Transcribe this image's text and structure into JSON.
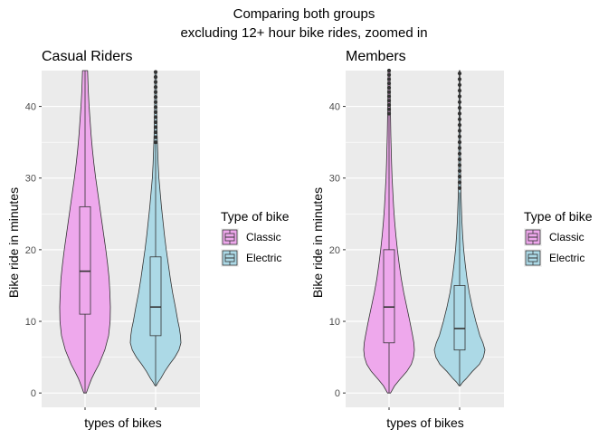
{
  "figure": {
    "title_line1": "Comparing both groups",
    "title_line2": "excluding 12+ hour bike rides, zoomed in"
  },
  "colors": {
    "classic": "#eea8ec",
    "electric": "#acd9e6",
    "panel_bg": "#ebebeb",
    "grid": "#ffffff",
    "outline": "#333333"
  },
  "chart_data": [
    {
      "type": "violin",
      "title": "Casual Riders",
      "xlabel": "types of bikes",
      "ylabel": "Bike ride in minutes",
      "ylim": [
        -2,
        45
      ],
      "yticks": [
        0,
        10,
        20,
        30,
        40
      ],
      "grid": true,
      "legend": {
        "title": "Type of bike",
        "position": "right",
        "entries": [
          "Classic",
          "Electric"
        ]
      },
      "series": [
        {
          "name": "Classic",
          "color": "#eea8ec",
          "box": {
            "q1": 11,
            "median": 17,
            "q3": 26,
            "whisker_low": 0,
            "whisker_high": 45
          },
          "outliers": [],
          "density": [
            [
              0,
              0.05
            ],
            [
              1,
              0.15
            ],
            [
              2,
              0.26
            ],
            [
              3,
              0.4
            ],
            [
              4,
              0.55
            ],
            [
              6,
              0.78
            ],
            [
              8,
              0.93
            ],
            [
              10,
              0.99
            ],
            [
              12,
              1.0
            ],
            [
              14,
              0.98
            ],
            [
              16,
              0.95
            ],
            [
              18,
              0.89
            ],
            [
              20,
              0.82
            ],
            [
              22,
              0.74
            ],
            [
              24,
              0.66
            ],
            [
              26,
              0.58
            ],
            [
              28,
              0.5
            ],
            [
              30,
              0.42
            ],
            [
              32,
              0.35
            ],
            [
              34,
              0.29
            ],
            [
              36,
              0.24
            ],
            [
              38,
              0.2
            ],
            [
              40,
              0.16
            ],
            [
              42,
              0.13
            ],
            [
              44,
              0.11
            ],
            [
              45,
              0.1
            ]
          ]
        },
        {
          "name": "Electric",
          "color": "#acd9e6",
          "box": {
            "q1": 8,
            "median": 12,
            "q3": 19,
            "whisker_low": 1,
            "whisker_high": 35
          },
          "outliers": [
            35,
            35.7,
            36.4,
            37.1,
            37.8,
            38.5,
            39.2,
            39.9,
            40.6,
            41.3,
            42,
            42.7,
            43.4,
            44.1,
            44.8
          ],
          "density": [
            [
              1,
              0.02
            ],
            [
              1.5,
              0.1
            ],
            [
              2,
              0.2
            ],
            [
              3,
              0.36
            ],
            [
              4,
              0.55
            ],
            [
              5,
              0.76
            ],
            [
              6,
              0.92
            ],
            [
              7,
              1.0
            ],
            [
              8,
              0.98
            ],
            [
              9,
              0.94
            ],
            [
              10,
              0.88
            ],
            [
              12,
              0.78
            ],
            [
              14,
              0.67
            ],
            [
              16,
              0.58
            ],
            [
              18,
              0.5
            ],
            [
              20,
              0.42
            ],
            [
              22,
              0.35
            ],
            [
              24,
              0.29
            ],
            [
              26,
              0.23
            ],
            [
              28,
              0.18
            ],
            [
              30,
              0.13
            ],
            [
              32,
              0.1
            ],
            [
              34,
              0.08
            ],
            [
              36,
              0.06
            ],
            [
              38,
              0.05
            ],
            [
              40,
              0.04
            ],
            [
              42,
              0.035
            ],
            [
              44,
              0.03
            ],
            [
              45,
              0.03
            ]
          ]
        }
      ]
    },
    {
      "type": "violin",
      "title": "Members",
      "xlabel": "types of bikes",
      "ylabel": "Bike ride in minutes",
      "ylim": [
        -2,
        45
      ],
      "yticks": [
        0,
        10,
        20,
        30,
        40
      ],
      "grid": true,
      "legend": {
        "title": "Type of bike",
        "position": "right",
        "entries": [
          "Classic",
          "Electric"
        ]
      },
      "series": [
        {
          "name": "Classic",
          "color": "#eea8ec",
          "box": {
            "q1": 7,
            "median": 12,
            "q3": 20,
            "whisker_low": 0,
            "whisker_high": 39
          },
          "outliers": [
            39,
            39.6,
            40.2,
            40.8,
            41.4,
            42,
            42.6,
            43.2,
            43.8,
            44.4,
            45
          ],
          "density": [
            [
              0,
              0.06
            ],
            [
              1,
              0.22
            ],
            [
              2,
              0.45
            ],
            [
              3,
              0.7
            ],
            [
              4,
              0.88
            ],
            [
              5,
              0.97
            ],
            [
              6,
              1.0
            ],
            [
              7,
              0.98
            ],
            [
              8,
              0.93
            ],
            [
              10,
              0.82
            ],
            [
              12,
              0.7
            ],
            [
              14,
              0.58
            ],
            [
              16,
              0.48
            ],
            [
              18,
              0.4
            ],
            [
              20,
              0.33
            ],
            [
              22,
              0.27
            ],
            [
              24,
              0.22
            ],
            [
              26,
              0.18
            ],
            [
              28,
              0.15
            ],
            [
              30,
              0.12
            ],
            [
              32,
              0.1
            ],
            [
              34,
              0.085
            ],
            [
              36,
              0.07
            ],
            [
              38,
              0.06
            ],
            [
              40,
              0.05
            ],
            [
              42,
              0.045
            ],
            [
              44,
              0.04
            ],
            [
              45,
              0.04
            ]
          ]
        },
        {
          "name": "Electric",
          "color": "#acd9e6",
          "box": {
            "q1": 6,
            "median": 9,
            "q3": 15,
            "whisker_low": 1,
            "whisker_high": 28
          },
          "outliers": [
            28.6,
            29.4,
            30.2,
            31,
            31.8,
            32.6,
            33.4,
            34.2,
            35,
            35.8,
            36.6,
            37.4,
            38.2,
            39,
            39.8,
            40.6,
            41.4,
            42.2,
            43,
            43.8,
            44.6
          ],
          "density": [
            [
              1,
              0.02
            ],
            [
              1.5,
              0.12
            ],
            [
              2,
              0.26
            ],
            [
              3,
              0.5
            ],
            [
              4,
              0.78
            ],
            [
              5,
              0.94
            ],
            [
              6,
              1.0
            ],
            [
              7,
              0.92
            ],
            [
              8,
              0.8
            ],
            [
              10,
              0.64
            ],
            [
              12,
              0.5
            ],
            [
              14,
              0.38
            ],
            [
              16,
              0.29
            ],
            [
              18,
              0.22
            ],
            [
              20,
              0.16
            ],
            [
              22,
              0.12
            ],
            [
              24,
              0.09
            ],
            [
              26,
              0.07
            ],
            [
              28,
              0.05
            ],
            [
              30,
              0.04
            ],
            [
              32,
              0.035
            ],
            [
              34,
              0.03
            ],
            [
              36,
              0.025
            ],
            [
              38,
              0.022
            ],
            [
              40,
              0.02
            ],
            [
              42,
              0.018
            ],
            [
              44,
              0.015
            ],
            [
              45,
              0.015
            ]
          ]
        }
      ]
    }
  ]
}
